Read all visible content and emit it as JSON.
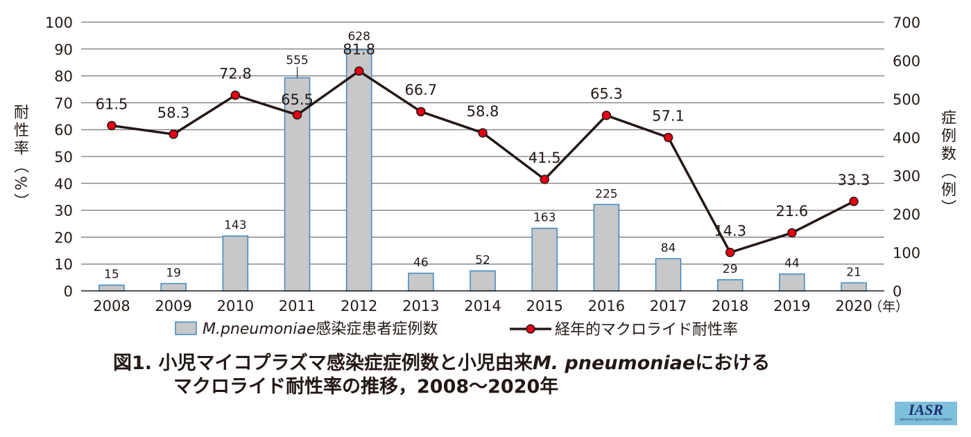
{
  "chart_data": {
    "type": "bar+line",
    "categories": [
      "2008",
      "2009",
      "2010",
      "2011",
      "2012",
      "2013",
      "2014",
      "2015",
      "2016",
      "2017",
      "2018",
      "2019",
      "2020"
    ],
    "x_unit": "（年）",
    "series": [
      {
        "name": "M.pneumoniae感染症患者症例数",
        "type": "bar",
        "axis": "right",
        "values": [
          15,
          19,
          143,
          555,
          628,
          46,
          52,
          163,
          225,
          84,
          29,
          44,
          21
        ]
      },
      {
        "name": "経年的マクロライド耐性率",
        "type": "line",
        "axis": "left",
        "values": [
          61.5,
          58.3,
          72.8,
          65.5,
          81.8,
          66.7,
          58.8,
          41.5,
          65.3,
          57.1,
          14.3,
          21.6,
          33.3
        ]
      }
    ],
    "ylabel": "耐性率（%）",
    "ylim": [
      0,
      100
    ],
    "yticks": [
      0,
      10,
      20,
      30,
      40,
      50,
      60,
      70,
      80,
      90,
      100
    ],
    "y2label": "症例数（例）",
    "y2lim": [
      0,
      700
    ],
    "y2ticks": [
      0,
      100,
      200,
      300,
      400,
      500,
      600,
      700
    ],
    "grid": true,
    "legend": "bottom",
    "colors": {
      "bar": "#c8c8c8",
      "bar_edge": "#3b87c4",
      "line": "#231815",
      "marker": "#e50012"
    }
  },
  "legend": {
    "bar_italic": "M.pneumoniae",
    "bar_rest": "感染症患者症例数",
    "line": "経年的マクロライド耐性率"
  },
  "title": {
    "line1_a": "図1. 小児マイコプラズマ感染症症例数と小児由来",
    "line1_italic": "M. pneumoniae",
    "line1_b": "における",
    "line2": "マクロライド耐性率の推移，2008〜2020年"
  },
  "logo": {
    "text": "IASR",
    "subtitle": "Infectious Agents Surveillance Report"
  }
}
